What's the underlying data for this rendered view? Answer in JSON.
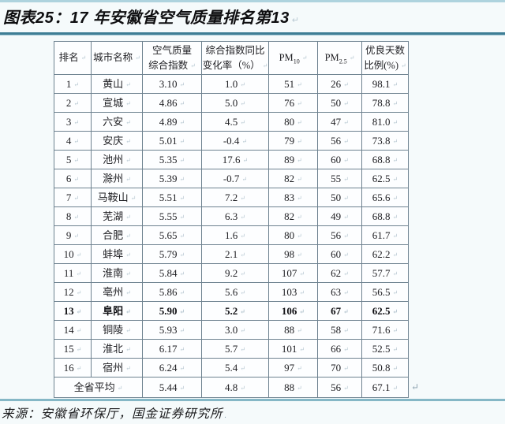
{
  "title": "图表25：17 年安徽省空气质量排名第13",
  "source_label": "来源：安徽省环保厅，国金证券研究所",
  "colors": {
    "title_rule": "#3e7e95",
    "top_strip": "#aed3de",
    "bottom_line": "#85b7c6",
    "table_border": "#6e8290",
    "text": "#202024",
    "page_background": "#f5fafb"
  },
  "table": {
    "headers": {
      "rank": "排名",
      "city": "城市名称",
      "index": "空气质量\n综合指数",
      "yoy": "综合指数同比\n变化率（%）",
      "pm10_base": "PM",
      "pm10_sub": "10",
      "pm25_base": "PM",
      "pm25_sub": "2.5",
      "good": "优良天数\n比例(%)"
    },
    "rows": [
      {
        "rank": "1",
        "city": "黄山",
        "index": "3.10",
        "yoy": "1.0",
        "pm10": "51",
        "pm25": "26",
        "good": "98.1",
        "bold": false
      },
      {
        "rank": "2",
        "city": "宣城",
        "index": "4.86",
        "yoy": "5.0",
        "pm10": "76",
        "pm25": "50",
        "good": "78.8",
        "bold": false
      },
      {
        "rank": "3",
        "city": "六安",
        "index": "4.89",
        "yoy": "4.5",
        "pm10": "80",
        "pm25": "47",
        "good": "81.0",
        "bold": false
      },
      {
        "rank": "4",
        "city": "安庆",
        "index": "5.01",
        "yoy": "-0.4",
        "pm10": "79",
        "pm25": "56",
        "good": "73.8",
        "bold": false
      },
      {
        "rank": "5",
        "city": "池州",
        "index": "5.35",
        "yoy": "17.6",
        "pm10": "89",
        "pm25": "60",
        "good": "68.8",
        "bold": false
      },
      {
        "rank": "6",
        "city": "滁州",
        "index": "5.39",
        "yoy": "-0.7",
        "pm10": "82",
        "pm25": "55",
        "good": "62.5",
        "bold": false
      },
      {
        "rank": "7",
        "city": "马鞍山",
        "index": "5.51",
        "yoy": "7.2",
        "pm10": "83",
        "pm25": "50",
        "good": "65.6",
        "bold": false
      },
      {
        "rank": "8",
        "city": "芜湖",
        "index": "5.55",
        "yoy": "6.3",
        "pm10": "82",
        "pm25": "49",
        "good": "68.8",
        "bold": false
      },
      {
        "rank": "9",
        "city": "合肥",
        "index": "5.65",
        "yoy": "1.6",
        "pm10": "80",
        "pm25": "56",
        "good": "61.7",
        "bold": false
      },
      {
        "rank": "10",
        "city": "蚌埠",
        "index": "5.79",
        "yoy": "2.1",
        "pm10": "98",
        "pm25": "60",
        "good": "62.2",
        "bold": false
      },
      {
        "rank": "11",
        "city": "淮南",
        "index": "5.84",
        "yoy": "9.2",
        "pm10": "107",
        "pm25": "62",
        "good": "57.7",
        "bold": false
      },
      {
        "rank": "12",
        "city": "亳州",
        "index": "5.86",
        "yoy": "5.6",
        "pm10": "103",
        "pm25": "63",
        "good": "56.5",
        "bold": false
      },
      {
        "rank": "13",
        "city": "阜阳",
        "index": "5.90",
        "yoy": "5.2",
        "pm10": "106",
        "pm25": "67",
        "good": "62.5",
        "bold": true
      },
      {
        "rank": "14",
        "city": "铜陵",
        "index": "5.93",
        "yoy": "3.0",
        "pm10": "88",
        "pm25": "58",
        "good": "71.6",
        "bold": false
      },
      {
        "rank": "15",
        "city": "淮北",
        "index": "6.17",
        "yoy": "5.7",
        "pm10": "101",
        "pm25": "66",
        "good": "52.5",
        "bold": false
      },
      {
        "rank": "16",
        "city": "宿州",
        "index": "6.24",
        "yoy": "5.4",
        "pm10": "97",
        "pm25": "70",
        "good": "50.8",
        "bold": false
      }
    ],
    "footer": {
      "label": "全省平均",
      "index": "5.44",
      "yoy": "4.8",
      "pm10": "88",
      "pm25": "56",
      "good": "67.1"
    }
  }
}
